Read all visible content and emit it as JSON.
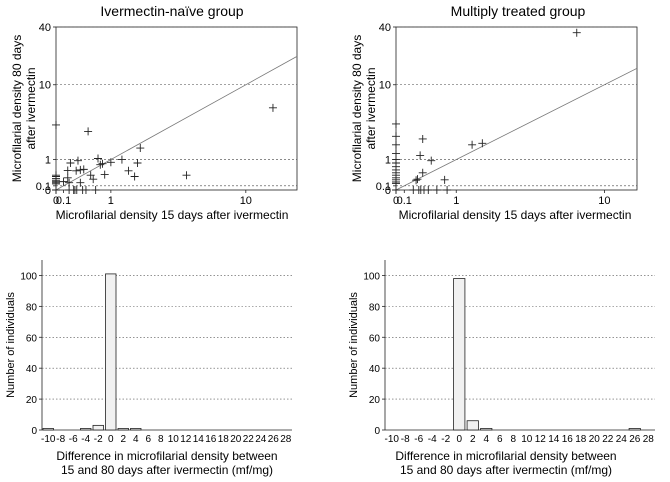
{
  "chart_data": [
    {
      "type": "scatter",
      "title": "Ivermectin-naïve group",
      "xlabel": "Microfilarial density 15 days after ivermectin",
      "ylabel_lines": [
        "Microfilarial density 80 days",
        "after ivermectin"
      ],
      "scale": "log1p",
      "xlim": [
        0,
        20
      ],
      "ylim": [
        0,
        40
      ],
      "x_ticks": [
        {
          "v": 0,
          "label": "0"
        },
        {
          "v": 0.1,
          "label": "0.1"
        },
        {
          "v": 1,
          "label": "1"
        },
        {
          "v": 10,
          "label": "10"
        }
      ],
      "y_ticks": [
        {
          "v": 0,
          "label": "0"
        },
        {
          "v": 0.1,
          "label": "0.1"
        },
        {
          "v": 1,
          "label": "1"
        },
        {
          "v": 10,
          "label": "10"
        },
        {
          "v": 40,
          "label": "40"
        }
      ],
      "grid": "horizontal-dotted",
      "reference_line": "identity",
      "marker": "plus",
      "points": [
        [
          0,
          3.4
        ],
        [
          0,
          0.4
        ],
        [
          0,
          0.36
        ],
        [
          0,
          0.3
        ],
        [
          0,
          0.25
        ],
        [
          0,
          0.22
        ],
        [
          0,
          0.18
        ],
        [
          0,
          0.15
        ],
        [
          0,
          0
        ],
        [
          0.1,
          0.21
        ],
        [
          0.16,
          0.32
        ],
        [
          0.16,
          0.56
        ],
        [
          0.18,
          0.18
        ],
        [
          0.18,
          0
        ],
        [
          0.2,
          0.85
        ],
        [
          0.25,
          0
        ],
        [
          0.27,
          0
        ],
        [
          0.29,
          0.55
        ],
        [
          0.3,
          0
        ],
        [
          0.32,
          0.95
        ],
        [
          0.36,
          0.58
        ],
        [
          0.36,
          0.18
        ],
        [
          0.4,
          0
        ],
        [
          0.42,
          0.6
        ],
        [
          0.46,
          0
        ],
        [
          0.5,
          2.8
        ],
        [
          0.55,
          0.4
        ],
        [
          0.6,
          0.28
        ],
        [
          0.65,
          0
        ],
        [
          0.7,
          1.05
        ],
        [
          0.75,
          0.78
        ],
        [
          0.8,
          0.82
        ],
        [
          0.85,
          0.42
        ],
        [
          1.0,
          0.88
        ],
        [
          1.3,
          1.0
        ],
        [
          1.5,
          0.55
        ],
        [
          1.7,
          0.36
        ],
        [
          1.8,
          0.85
        ],
        [
          1.9,
          1.6
        ],
        [
          4.2,
          0.4
        ],
        [
          14.5,
          5.5
        ]
      ]
    },
    {
      "type": "scatter",
      "title": "Multiply treated group",
      "xlabel": "Microfilarial density 15 days after ivermectin",
      "ylabel_lines": [
        "Microfilarial density 80 days",
        "after ivermectin"
      ],
      "scale": "log1p",
      "xlim": [
        0,
        15
      ],
      "ylim": [
        0,
        40
      ],
      "x_ticks": [
        {
          "v": 0,
          "label": "0"
        },
        {
          "v": 0.1,
          "label": "0.1"
        },
        {
          "v": 1,
          "label": "1"
        },
        {
          "v": 10,
          "label": "10"
        }
      ],
      "y_ticks": [
        {
          "v": 0,
          "label": "0"
        },
        {
          "v": 0.1,
          "label": "0.1"
        },
        {
          "v": 1,
          "label": "1"
        },
        {
          "v": 10,
          "label": "10"
        },
        {
          "v": 40,
          "label": "40"
        }
      ],
      "grid": "horizontal-dotted",
      "reference_line": "identity",
      "marker": "plus",
      "points": [
        [
          0,
          3.5
        ],
        [
          0,
          2.4
        ],
        [
          0,
          1.8
        ],
        [
          0,
          1.3
        ],
        [
          0,
          1.0
        ],
        [
          0,
          0.85
        ],
        [
          0,
          0.7
        ],
        [
          0,
          0.58
        ],
        [
          0,
          0.48
        ],
        [
          0,
          0.4
        ],
        [
          0,
          0.32
        ],
        [
          0,
          0.26
        ],
        [
          0,
          0.2
        ],
        [
          0,
          0.16
        ],
        [
          0,
          0
        ],
        [
          0.22,
          0
        ],
        [
          0.26,
          0.25
        ],
        [
          0.28,
          0.28
        ],
        [
          0.3,
          0
        ],
        [
          0.32,
          1.2
        ],
        [
          0.33,
          0
        ],
        [
          0.36,
          2.2
        ],
        [
          0.36,
          0.48
        ],
        [
          0.38,
          0
        ],
        [
          0.45,
          0
        ],
        [
          0.5,
          0.95
        ],
        [
          0.6,
          0
        ],
        [
          0.75,
          0.26
        ],
        [
          0.8,
          0
        ],
        [
          1.4,
          1.8
        ],
        [
          1.7,
          1.9
        ],
        [
          7.0,
          35.0
        ]
      ]
    },
    {
      "type": "bar",
      "xlabel_lines": [
        "Difference in microfilarial density between",
        "15 and 80 days after ivermectin (mf/mg)"
      ],
      "ylabel": "Number of individuals",
      "ylim": [
        0,
        110
      ],
      "y_ticks": [
        0,
        20,
        40,
        60,
        80,
        100
      ],
      "grid": "horizontal-dotted",
      "categories": [
        "-10",
        "-8",
        "-6",
        "-4",
        "-2",
        "0",
        "2",
        "4",
        "6",
        "8",
        "10",
        "12",
        "14",
        "16",
        "18",
        "20",
        "22",
        "24",
        "26",
        "28"
      ],
      "values": [
        1,
        0,
        0,
        1,
        3,
        101,
        1,
        1,
        0,
        0,
        0,
        0,
        0,
        0,
        0,
        0,
        0,
        0,
        0,
        0
      ]
    },
    {
      "type": "bar",
      "xlabel_lines": [
        "Difference in microfilarial density between",
        "15 and 80 days after ivermectin (mf/mg)"
      ],
      "ylabel": "Number of individuals",
      "ylim": [
        0,
        110
      ],
      "y_ticks": [
        0,
        20,
        40,
        60,
        80,
        100
      ],
      "grid": "horizontal-dotted",
      "categories": [
        "-10",
        "-8",
        "-6",
        "-4",
        "-2",
        "0",
        "2",
        "4",
        "6",
        "8",
        "10",
        "12",
        "14",
        "16",
        "18",
        "20",
        "22",
        "24",
        "26",
        "28"
      ],
      "values": [
        0,
        0,
        0,
        0,
        0,
        98,
        6,
        1,
        0,
        0,
        0,
        0,
        0,
        0,
        0,
        0,
        0,
        0,
        1,
        0
      ]
    }
  ]
}
